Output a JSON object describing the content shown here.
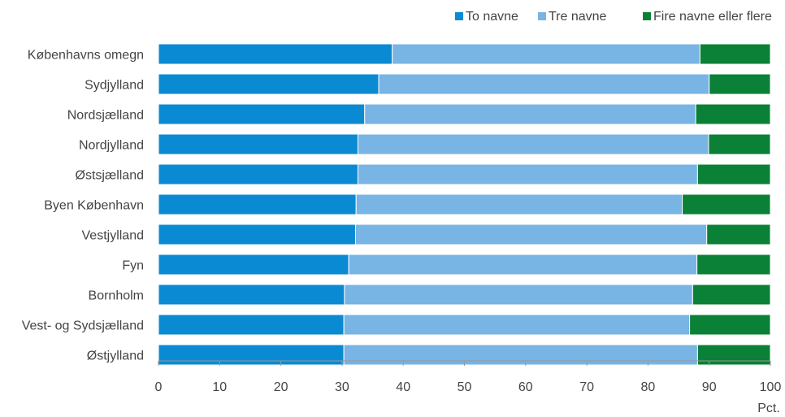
{
  "chart_data": {
    "type": "bar",
    "orientation": "horizontal",
    "stacked": true,
    "categories": [
      "Københavns omegn",
      "Sydjylland",
      "Nordsjælland",
      "Nordjylland",
      "Østsjælland",
      "Byen København",
      "Vestjylland",
      "Fyn",
      "Bornholm",
      "Vest- og Sydsjælland",
      "Østjylland"
    ],
    "series": [
      {
        "name": "To navne",
        "color": "#0a8ad2",
        "values": [
          38.2,
          36.0,
          33.7,
          32.6,
          32.6,
          32.3,
          32.2,
          31.1,
          30.4,
          30.3,
          30.3
        ]
      },
      {
        "name": "Tre navne",
        "color": "#78b4e4",
        "values": [
          50.3,
          54.0,
          54.1,
          57.3,
          55.5,
          53.3,
          57.4,
          56.9,
          56.9,
          56.5,
          57.8
        ]
      },
      {
        "name": "Fire navne eller flere",
        "color": "#0a8136",
        "values": [
          11.5,
          10.0,
          12.2,
          10.1,
          11.9,
          14.4,
          10.4,
          12.0,
          12.7,
          13.2,
          11.9
        ]
      }
    ],
    "xlim": [
      0,
      100
    ],
    "xticks": [
      0,
      10,
      20,
      30,
      40,
      50,
      60,
      70,
      80,
      90,
      100
    ],
    "xunit": "Pct.",
    "legend_position": "top-right",
    "grid": false
  }
}
